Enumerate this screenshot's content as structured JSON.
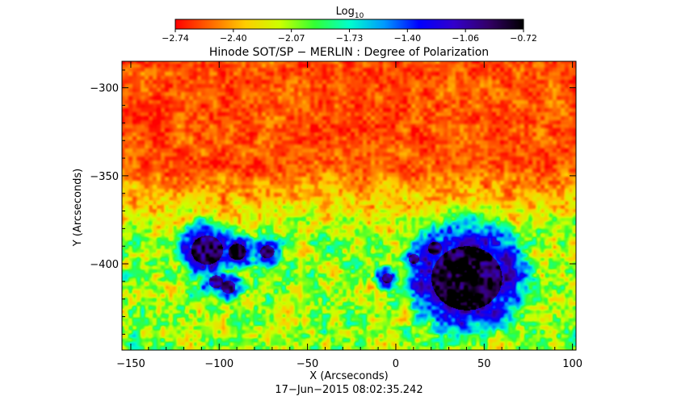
{
  "chart_data": {
    "type": "heatmap",
    "title": "Hinode SOT/SP − MERLIN : Degree of Polarization",
    "xlabel": "X (Arcseconds)",
    "ylabel": "Y (Arcseconds)",
    "timestamp": "17−Jun−2015 08:02:35.242",
    "xlim": [
      -155,
      102
    ],
    "ylim": [
      -449,
      -285
    ],
    "x_ticks": [
      {
        "value": -150,
        "label": "−150"
      },
      {
        "value": -100,
        "label": "−100"
      },
      {
        "value": -50,
        "label": "−50"
      },
      {
        "value": 0,
        "label": "0"
      },
      {
        "value": 50,
        "label": "50"
      },
      {
        "value": 100,
        "label": "100"
      }
    ],
    "y_ticks": [
      {
        "value": -300,
        "label": "−300"
      },
      {
        "value": -350,
        "label": "−350"
      },
      {
        "value": -400,
        "label": "−400"
      }
    ],
    "colorbar": {
      "title_main": "Log",
      "title_sub": "10",
      "range": [
        -2.74,
        -0.72
      ],
      "tick_labels": [
        "−2.74",
        "−2.40",
        "−2.07",
        "−1.73",
        "−1.40",
        "−1.06",
        "−0.72"
      ],
      "colormap": [
        "#ff0000",
        "#ff6600",
        "#ffcc00",
        "#ccff00",
        "#33ff33",
        "#00ffcc",
        "#0099ff",
        "#0000ff",
        "#3300cc",
        "#330066",
        "#000000"
      ]
    },
    "background_level": -2.6,
    "features": [
      {
        "name": "main sunspot",
        "x": 40,
        "y": -408,
        "radius": 20,
        "peak": -0.75
      },
      {
        "name": "sunspot",
        "x": -107,
        "y": -392,
        "radius": 9,
        "peak": -0.8
      },
      {
        "name": "sunspot",
        "x": -90,
        "y": -393,
        "radius": 5,
        "peak": -0.85
      },
      {
        "name": "sunspot",
        "x": -73,
        "y": -393,
        "radius": 4,
        "peak": -0.9
      },
      {
        "name": "pore",
        "x": -102,
        "y": -410,
        "radius": 4,
        "peak": -0.95
      },
      {
        "name": "pore",
        "x": -95,
        "y": -413,
        "radius": 4,
        "peak": -0.95
      },
      {
        "name": "pore",
        "x": 22,
        "y": -391,
        "radius": 4,
        "peak": -0.9
      },
      {
        "name": "pore",
        "x": 10,
        "y": -397,
        "radius": 3,
        "peak": -0.95
      },
      {
        "name": "pore",
        "x": -5,
        "y": -408,
        "radius": 3,
        "peak": -1.0
      }
    ]
  }
}
